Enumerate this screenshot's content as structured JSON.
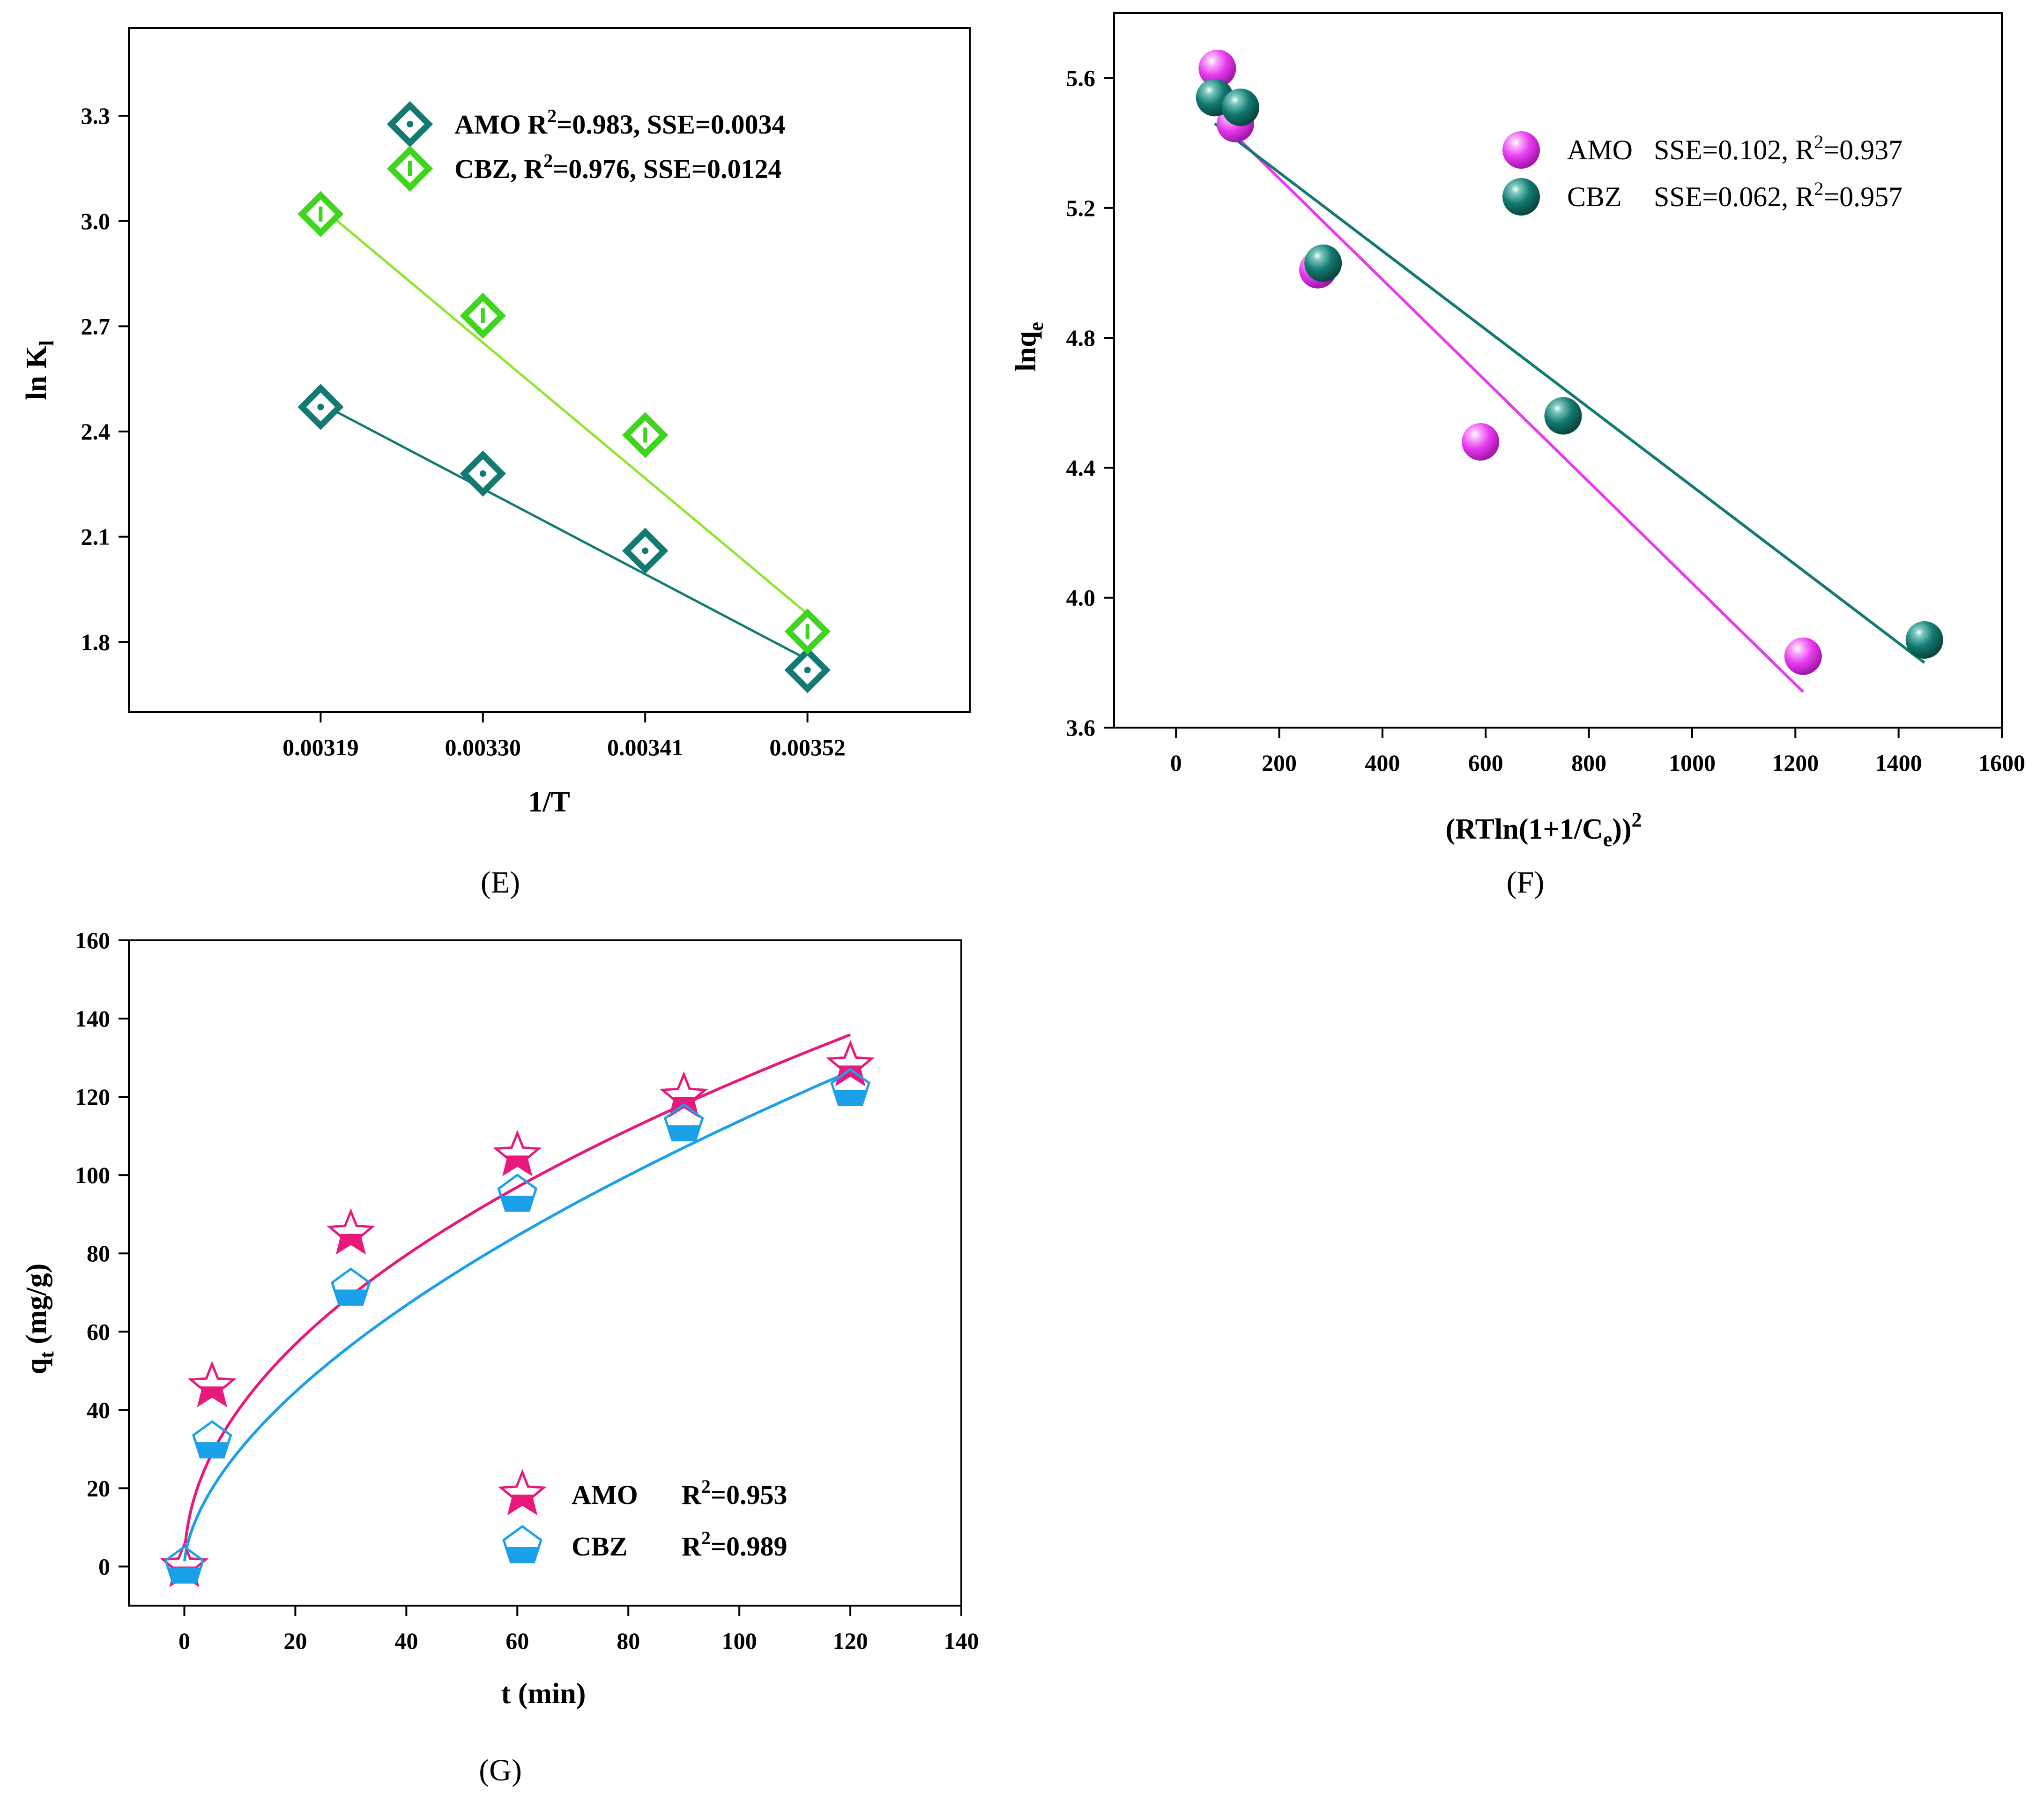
{
  "chart_data": [
    {
      "panel": "(E)",
      "type": "scatter",
      "xlabel": "1/T",
      "ylabel": "ln K",
      "ylabel_sub": "l",
      "x_ticks": [
        "0.00319",
        "0.00330",
        "0.00341",
        "0.00352"
      ],
      "y_ticks": [
        "1.8",
        "2.1",
        "2.4",
        "2.7",
        "3.0",
        "3.3"
      ],
      "xlim": [
        0.00306,
        0.00363
      ],
      "ylim": [
        1.6,
        3.55
      ],
      "legend_position": "top-right",
      "series": [
        {
          "name": "AMO",
          "legend_stats": {
            "r2_prefix": "R",
            "r2_sup": "2",
            "r2_rest": "=0.983, SSE=0.0034"
          },
          "color": "#137a72",
          "marker": "diamond-dot",
          "x": [
            0.00319,
            0.0033,
            0.00341,
            0.00352
          ],
          "y": [
            2.47,
            2.28,
            2.06,
            1.72
          ],
          "fit": {
            "x": [
              0.00319,
              0.00352
            ],
            "y": [
              2.48,
              1.75
            ]
          }
        },
        {
          "name": "CBZ,",
          "legend_stats": {
            "r2_prefix": "R",
            "r2_sup": "2",
            "r2_rest": "=0.976, SSE=0.0124"
          },
          "color": "#3fd41d",
          "line_color": "#8ce62b",
          "marker": "diamond-bar",
          "x": [
            0.00319,
            0.0033,
            0.00341,
            0.00352
          ],
          "y": [
            3.02,
            2.73,
            2.39,
            1.83
          ],
          "fit": {
            "x": [
              0.00319,
              0.00352
            ],
            "y": [
              3.04,
              1.88
            ]
          }
        }
      ]
    },
    {
      "panel": "(F)",
      "type": "scatter",
      "xlabel_prefix": "(RTln(1+1/C",
      "xlabel_sub": "e",
      "xlabel_suffix": "))",
      "xlabel_sup": "2",
      "ylabel": "lnq",
      "ylabel_sub": "e",
      "x_ticks": [
        "0",
        "200",
        "400",
        "600",
        "800",
        "1000",
        "1200",
        "1400",
        "1600"
      ],
      "y_ticks": [
        "3.6",
        "4.0",
        "4.4",
        "4.8",
        "5.2",
        "5.6"
      ],
      "xlim": [
        -120,
        1600
      ],
      "ylim": [
        3.6,
        5.8
      ],
      "legend_position": "top-right",
      "series": [
        {
          "name": "AMO",
          "legend_stats": {
            "sse": "SSE=0.102,",
            "r2_prefix": "R",
            "r2_sup": "2",
            "r2_rest": "=0.937"
          },
          "color": "#e83cf0",
          "marker": "sphere",
          "x": [
            80,
            115,
            275,
            590,
            1215
          ],
          "y": [
            5.63,
            5.46,
            5.01,
            4.48,
            3.82
          ],
          "fit": {
            "x": [
              85,
              1215
            ],
            "y": [
              5.47,
              3.71
            ]
          }
        },
        {
          "name": "CBZ",
          "legend_stats": {
            "sse": "SSE=0.062,",
            "r2_prefix": "R",
            "r2_sup": "2",
            "r2_rest": "=0.957"
          },
          "color": "#137a72",
          "marker": "sphere",
          "x": [
            75,
            125,
            285,
            750,
            1450
          ],
          "y": [
            5.54,
            5.51,
            5.03,
            4.56,
            3.87
          ],
          "fit": {
            "x": [
              75,
              1450
            ],
            "y": [
              5.46,
              3.8
            ]
          }
        }
      ]
    },
    {
      "panel": "(G)",
      "type": "scatter",
      "xlabel": "t (min)",
      "ylabel": "q",
      "ylabel_sub": "t",
      "ylabel_suffix": " (mg/g)",
      "x_ticks": [
        "0",
        "20",
        "40",
        "60",
        "80",
        "100",
        "120",
        "140"
      ],
      "y_ticks": [
        "0",
        "20",
        "40",
        "60",
        "80",
        "100",
        "120",
        "140",
        "160"
      ],
      "xlim": [
        -10,
        140
      ],
      "ylim": [
        -10,
        160
      ],
      "legend_position": "bottom-right",
      "series": [
        {
          "name": "AMO",
          "legend_stats": {
            "r2_prefix": "R",
            "r2_sup": "2",
            "r2_rest": "=0.953"
          },
          "color": "#e8197a",
          "marker": "star",
          "x": [
            0,
            5,
            30,
            60,
            90,
            120
          ],
          "y": [
            0,
            46,
            85,
            105,
            120,
            128
          ],
          "fit": {
            "model": "power",
            "k": 13.2,
            "n": 0.487,
            "x_range": [
              0.2,
              120
            ]
          }
        },
        {
          "name": "CBZ",
          "legend_stats": {
            "r2_prefix": "R",
            "r2_sup": "2",
            "r2_rest": "=0.989"
          },
          "color": "#1ba0ea",
          "marker": "pentagon-half",
          "x": [
            0,
            5,
            30,
            60,
            90,
            120
          ],
          "y": [
            0,
            32,
            71,
            95,
            113,
            122
          ],
          "fit": {
            "model": "power",
            "k": 7.8,
            "n": 0.582,
            "x_range": [
              0.05,
              120
            ]
          }
        }
      ]
    }
  ]
}
